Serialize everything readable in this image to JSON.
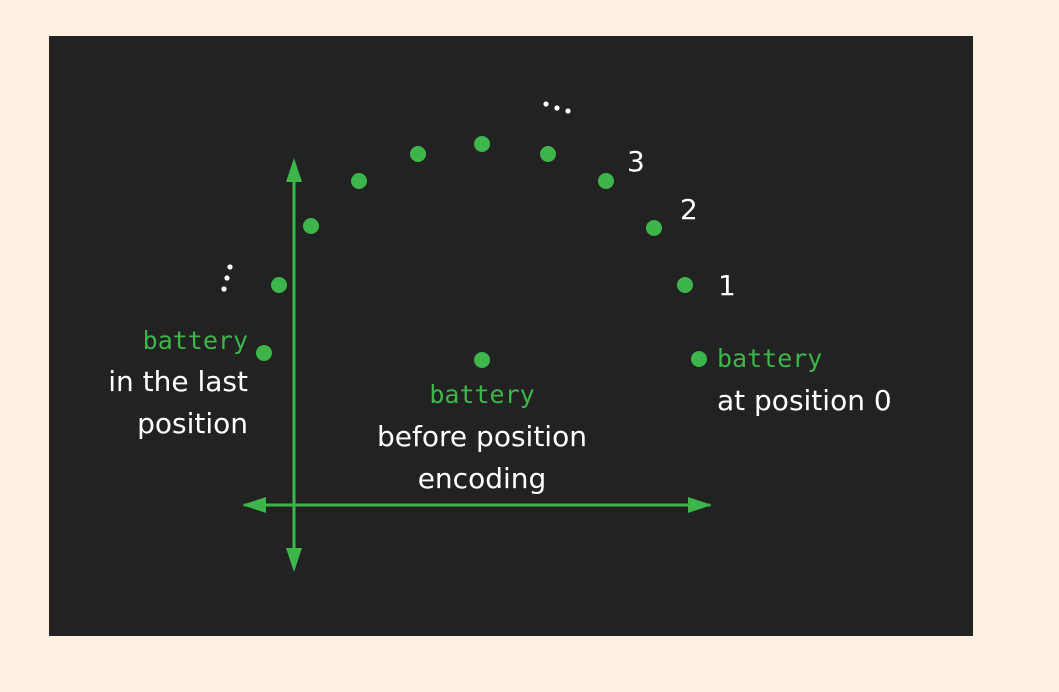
{
  "colors": {
    "accent": "#3db54a",
    "text": "#ffffff",
    "panel": "#222222",
    "page": "#fdf0e1"
  },
  "labels": {
    "last": {
      "token": "battery",
      "line1": "in the last",
      "line2": "position"
    },
    "center": {
      "token": "battery",
      "line1": "before position",
      "line2": "encoding"
    },
    "first": {
      "token": "battery",
      "line1": "at position 0"
    },
    "indices": [
      "1",
      "2",
      "3"
    ],
    "ellipsis_top": "...",
    "ellipsis_left": "..."
  }
}
